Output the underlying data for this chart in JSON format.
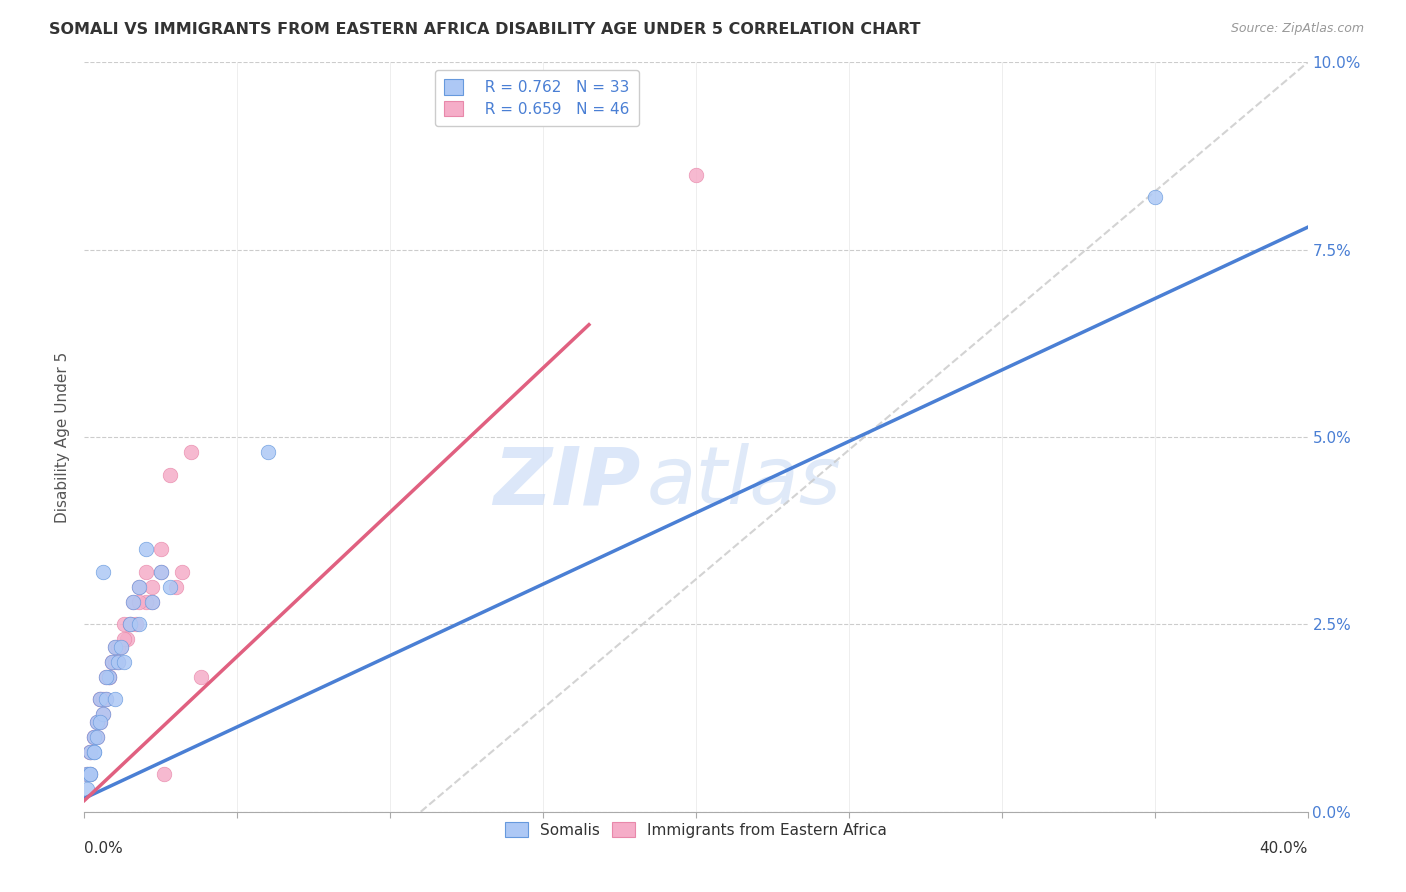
{
  "title": "SOMALI VS IMMIGRANTS FROM EASTERN AFRICA DISABILITY AGE UNDER 5 CORRELATION CHART",
  "source": "Source: ZipAtlas.com",
  "ylabel": "Disability Age Under 5",
  "ytick_vals": [
    0.0,
    2.5,
    5.0,
    7.5,
    10.0
  ],
  "xlim": [
    0.0,
    40.0
  ],
  "ylim": [
    0.0,
    10.0
  ],
  "watermark_zip": "ZIP",
  "watermark_atlas": "atlas",
  "legend_r1": "R = 0.762",
  "legend_n1": "N = 33",
  "legend_r2": "R = 0.659",
  "legend_n2": "N = 46",
  "somalis_color": "#adc8f5",
  "immigrants_color": "#f5adc8",
  "line1_color": "#4a7fd4",
  "line2_color": "#e06080",
  "dashed_color": "#c8c8c8",
  "somalis_x": [
    0.1,
    0.2,
    0.3,
    0.4,
    0.5,
    0.6,
    0.7,
    0.8,
    0.9,
    1.0,
    1.1,
    1.2,
    1.5,
    1.6,
    1.8,
    2.0,
    2.2,
    2.5,
    0.3,
    0.5,
    0.7,
    1.0,
    1.3,
    1.8,
    2.8,
    0.2,
    0.4,
    0.1,
    0.2,
    0.3,
    6.0,
    35.0,
    0.6
  ],
  "somalis_y": [
    0.5,
    0.8,
    1.0,
    1.2,
    1.5,
    1.3,
    1.5,
    1.8,
    2.0,
    2.2,
    2.0,
    2.2,
    2.5,
    2.8,
    3.0,
    3.5,
    2.8,
    3.2,
    0.8,
    1.2,
    1.8,
    1.5,
    2.0,
    2.5,
    3.0,
    0.5,
    1.0,
    0.3,
    0.5,
    0.8,
    4.8,
    8.2,
    3.2
  ],
  "immigrants_x": [
    0.1,
    0.2,
    0.3,
    0.4,
    0.5,
    0.6,
    0.7,
    0.8,
    0.9,
    1.0,
    1.1,
    1.2,
    1.3,
    1.4,
    1.5,
    1.6,
    1.7,
    1.8,
    2.0,
    2.2,
    2.5,
    2.8,
    3.0,
    3.2,
    3.5,
    0.3,
    0.5,
    0.7,
    0.9,
    1.1,
    1.5,
    2.0,
    2.5,
    0.2,
    0.4,
    0.6,
    0.8,
    1.0,
    1.3,
    1.8,
    2.2,
    2.6,
    3.8,
    20.0,
    0.2,
    0.5
  ],
  "immigrants_y": [
    0.5,
    0.8,
    1.0,
    1.2,
    1.5,
    1.3,
    1.5,
    1.8,
    2.0,
    2.2,
    2.0,
    2.2,
    2.5,
    2.3,
    2.5,
    2.8,
    2.5,
    3.0,
    3.2,
    2.8,
    3.5,
    4.5,
    3.0,
    3.2,
    4.8,
    1.0,
    1.5,
    1.8,
    2.0,
    2.2,
    2.5,
    2.8,
    3.2,
    0.5,
    1.0,
    1.5,
    1.8,
    2.0,
    2.3,
    2.8,
    3.0,
    0.5,
    1.8,
    8.5,
    0.8,
    1.2
  ],
  "line1_x0": 0.0,
  "line1_y0": 0.18,
  "line1_x1": 40.0,
  "line1_y1": 7.8,
  "line2_x0": 0.0,
  "line2_y0": 0.15,
  "line2_x1": 16.5,
  "line2_y1": 6.5,
  "dash_x0": 11.0,
  "dash_y0": 0.0,
  "dash_x1": 40.0,
  "dash_y1": 10.0
}
